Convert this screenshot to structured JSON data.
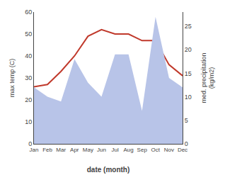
{
  "chart_data": {
    "type": "line",
    "categories": [
      "Jan",
      "Feb",
      "Mar",
      "Apr",
      "May",
      "Jun",
      "Jul",
      "Aug",
      "Sep",
      "Oct",
      "Nov",
      "Dec"
    ],
    "series": [
      {
        "type": "area",
        "color": "#b8c4e8",
        "axis": "y2",
        "values": [
          12,
          10,
          9,
          18,
          13,
          10,
          19,
          19,
          7,
          27,
          14,
          12
        ]
      },
      {
        "type": "line",
        "color": "#c0392b",
        "values": [
          26,
          27,
          33,
          40,
          49,
          52,
          50,
          50,
          47,
          47,
          36,
          31
        ]
      }
    ],
    "xlabel": "date (month)",
    "ylabel": "max temp (C)",
    "y2label": "med. precipitation\n(kg/m2)",
    "ylim": [
      0,
      60
    ],
    "yticks": [
      0,
      10,
      20,
      30,
      40,
      50,
      60
    ],
    "y2lim": [
      0,
      28
    ],
    "y2ticks": [
      0,
      5,
      10,
      15,
      20,
      25
    ],
    "grid": false
  }
}
